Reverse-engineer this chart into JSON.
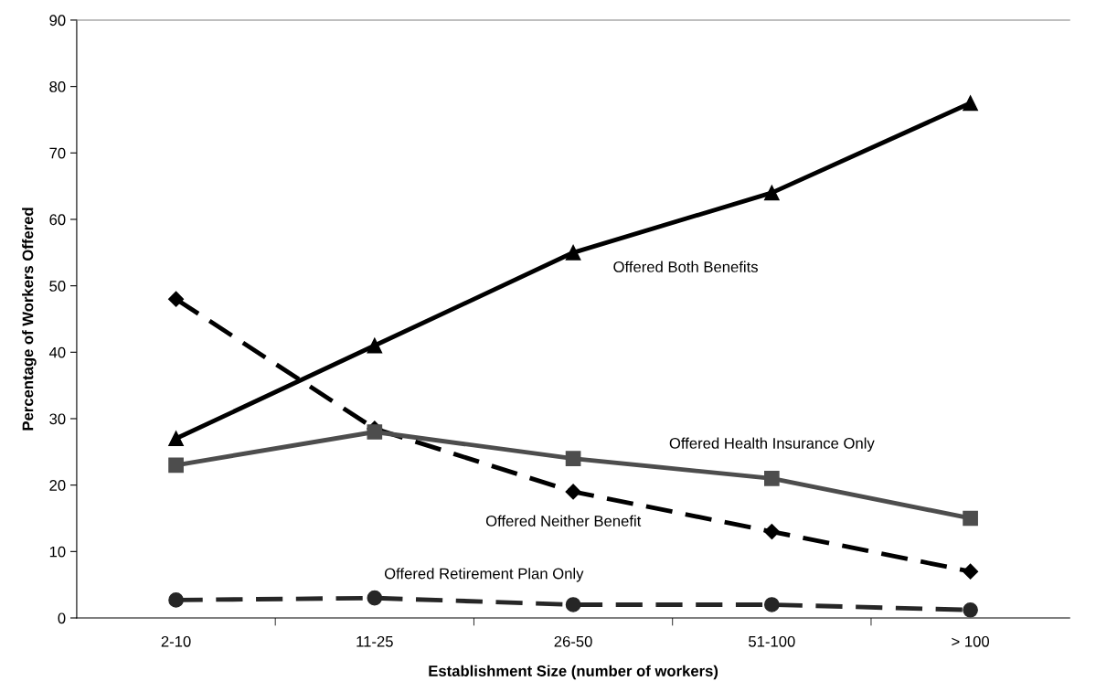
{
  "chart_data": {
    "type": "line",
    "xlabel": "Establishment Size (number of workers)",
    "ylabel": "Percentage of Workers Offered",
    "categories": [
      "2-10",
      "11-25",
      "26-50",
      "51-100",
      "> 100"
    ],
    "ylim": [
      0,
      90
    ],
    "yticks": [
      0,
      10,
      20,
      30,
      40,
      50,
      60,
      70,
      80,
      90
    ],
    "grid": false,
    "legend": false,
    "series": [
      {
        "name": "Offered Both Benefits",
        "color": "#000000",
        "marker": "triangle",
        "line_style": "solid",
        "values": [
          27,
          41,
          55,
          64,
          77.5
        ]
      },
      {
        "name": "Offered Health Insurance Only",
        "color": "#4d4d4d",
        "marker": "square",
        "line_style": "solid",
        "values": [
          23,
          28,
          24,
          21,
          15
        ]
      },
      {
        "name": "Offered Neither Benefit",
        "color": "#000000",
        "marker": "diamond",
        "line_style": "dashed",
        "values": [
          48,
          28.5,
          19,
          13,
          7
        ]
      },
      {
        "name": "Offered Retirement Plan Only",
        "color": "#262626",
        "marker": "circle",
        "line_style": "dashed",
        "values": [
          2.7,
          3,
          2,
          2,
          1.2
        ]
      }
    ]
  }
}
